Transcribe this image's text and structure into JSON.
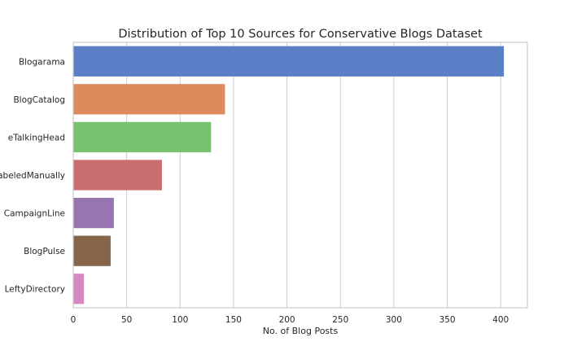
{
  "chart_data": {
    "type": "bar",
    "orientation": "horizontal",
    "title": "Distribution of Top 10 Sources for Conservative Blogs Dataset",
    "xlabel": "No. of Blog Posts",
    "ylabel": "",
    "xlim": [
      0,
      425
    ],
    "xticks": [
      0,
      50,
      100,
      150,
      200,
      250,
      300,
      350,
      400
    ],
    "grid": "vertical",
    "categories": [
      "Blogarama",
      "BlogCatalog",
      "eTalkingHead",
      "LabeledManually",
      "CampaignLine",
      "BlogPulse",
      "LeftyDirectory"
    ],
    "values": [
      403,
      142,
      129,
      83,
      38,
      35,
      10
    ],
    "colors": [
      "#5a7fc6",
      "#dd8a5c",
      "#76c26f",
      "#c96d6e",
      "#9675b0",
      "#86654a",
      "#d688c2"
    ]
  }
}
